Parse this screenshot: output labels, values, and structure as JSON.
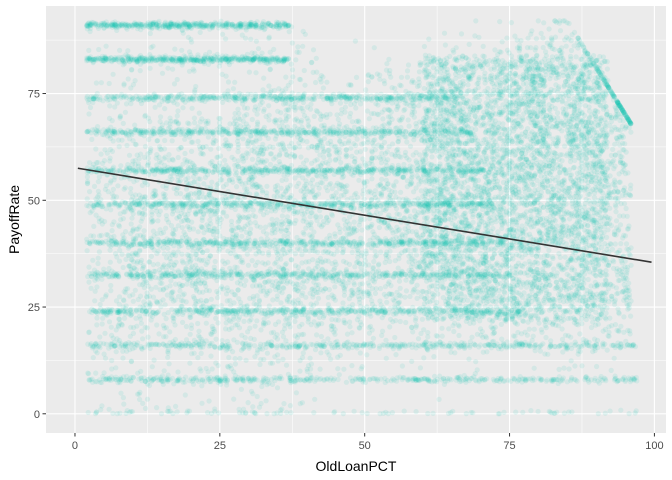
{
  "chart_data": {
    "type": "scatter",
    "xlabel": "OldLoanPCT",
    "ylabel": "PayoffRate",
    "xlim": [
      -5,
      102
    ],
    "ylim": [
      -4.5,
      95.5
    ],
    "x_ticks": [
      0,
      25,
      50,
      75,
      100
    ],
    "y_ticks": [
      0,
      25,
      50,
      75
    ],
    "x_tick_labels": [
      "0",
      "25",
      "50",
      "75",
      "100"
    ],
    "y_tick_labels": [
      "0",
      "25",
      "50",
      "75"
    ],
    "grid": true,
    "legend": "none",
    "point_color": "#0CC2B0",
    "point_alpha": 0.1,
    "line_color": "#333333",
    "series": [
      {
        "type": "scatter",
        "description_bands_y": [
          0,
          8,
          16,
          24,
          32.5,
          40,
          49,
          57,
          66,
          74,
          83,
          91
        ],
        "x_range": [
          2,
          99
        ],
        "y_range": [
          0,
          92
        ]
      },
      {
        "type": "line",
        "x": [
          0.5,
          99.5
        ],
        "y": [
          57.5,
          35.5
        ]
      }
    ]
  }
}
